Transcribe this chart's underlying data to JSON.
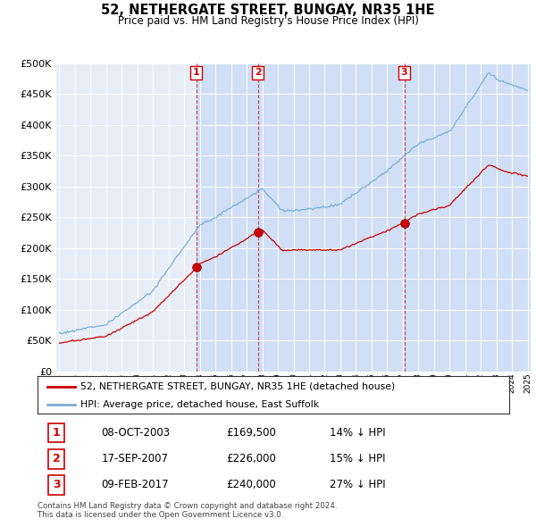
{
  "title": "52, NETHERGATE STREET, BUNGAY, NR35 1HE",
  "subtitle": "Price paid vs. HM Land Registry's House Price Index (HPI)",
  "legend_line1": "52, NETHERGATE STREET, BUNGAY, NR35 1HE (detached house)",
  "legend_line2": "HPI: Average price, detached house, East Suffolk",
  "sale_color": "#cc0000",
  "hpi_color": "#7aaed6",
  "sale_dates": [
    2003.77,
    2007.71,
    2017.1
  ],
  "sale_prices": [
    169500,
    226000,
    240000
  ],
  "sale_labels": [
    "1",
    "2",
    "3"
  ],
  "table_data": [
    [
      "1",
      "08-OCT-2003",
      "£169,500",
      "14% ↓ HPI"
    ],
    [
      "2",
      "17-SEP-2007",
      "£226,000",
      "15% ↓ HPI"
    ],
    [
      "3",
      "09-FEB-2017",
      "£240,000",
      "27% ↓ HPI"
    ]
  ],
  "footnote": "Contains HM Land Registry data © Crown copyright and database right 2024.\nThis data is licensed under the Open Government Licence v3.0.",
  "ylim": [
    0,
    500000
  ],
  "yticks": [
    0,
    50000,
    100000,
    150000,
    200000,
    250000,
    300000,
    350000,
    400000,
    450000,
    500000
  ],
  "xlim_start": 1994.8,
  "xlim_end": 2025.2,
  "background_color": "#ffffff",
  "plot_bg_color": "#e8eef8",
  "shade_color": "#d0dff5",
  "grid_color": "#ffffff"
}
